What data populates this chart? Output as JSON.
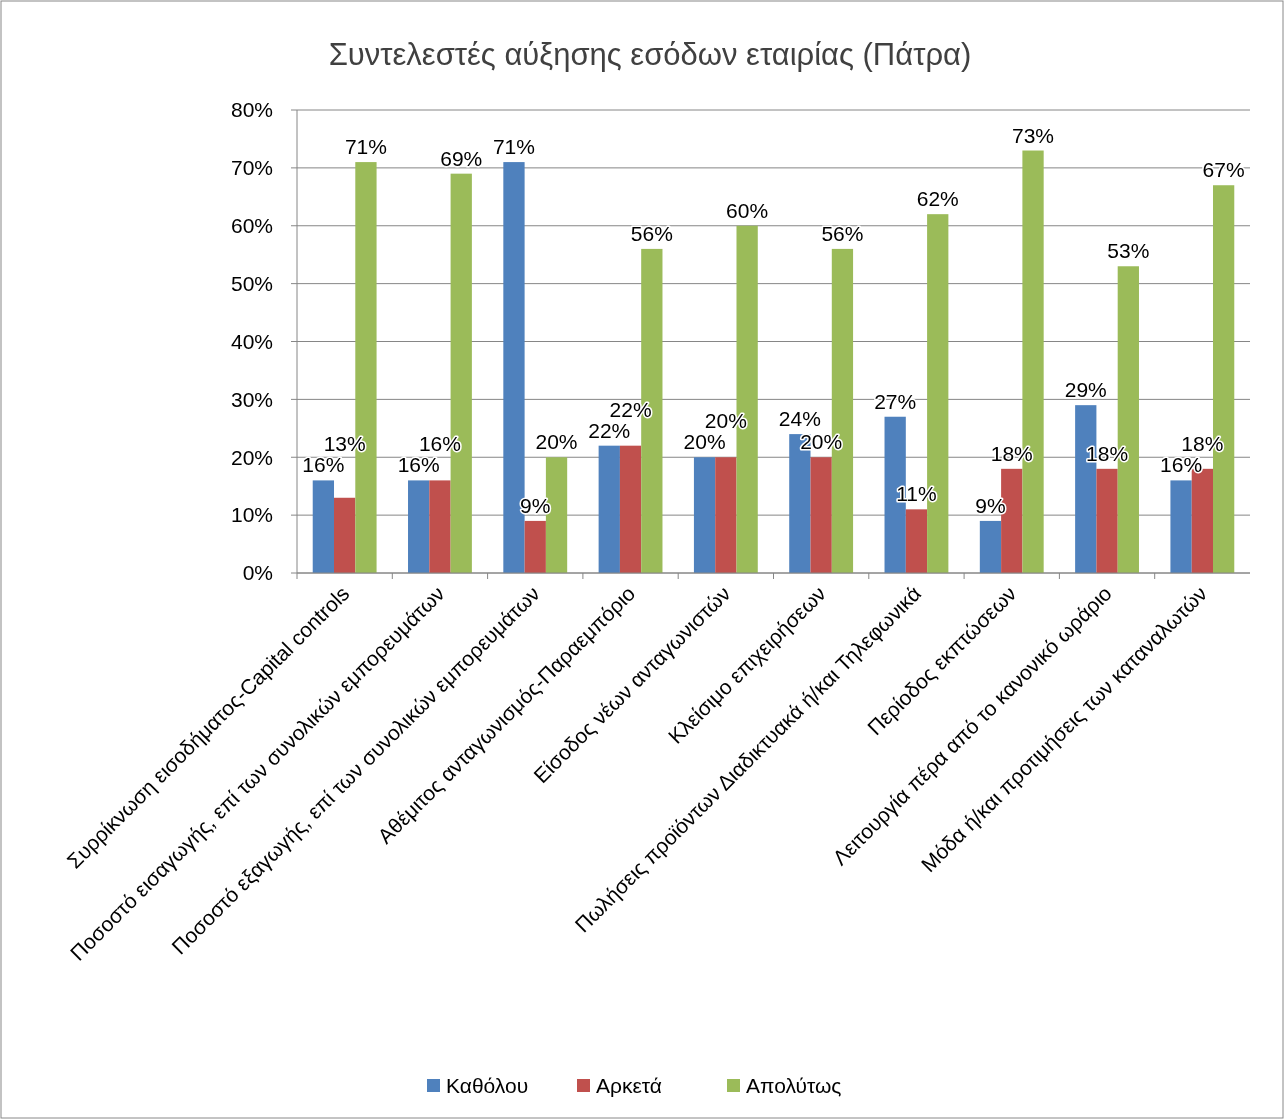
{
  "chart_data": {
    "type": "bar",
    "title": "Συντελεστές αύξησης εσόδων εταιρίας (Πάτρα)",
    "categories": [
      "Συρρίκνωση εισοδήματος-Capital controls",
      "Ποσοστό εισαγωγής, επί των συνολικών εμπορευμάτων",
      "Ποσοστό εξαγωγής, επί των συνολικών εμπορευμάτων",
      "Αθέμιτος ανταγωνισμός-Παραεμπόριο",
      "Είσοδος νέων ανταγωνιστών",
      "Κλείσιμο επιχειρήσεων",
      "Πωλήσεις  προϊόντων  Διαδικτυακά ή/και Τηλεφωνικά",
      "Περίοδος εκπτώσεων",
      "Λειτουργία πέρα από το κανονικό ωράριο",
      "Μόδα ή/και προτιμήσεις των καταναλωτών"
    ],
    "series": [
      {
        "name": "Καθόλου",
        "color": "#4f81bd",
        "values": [
          16,
          16,
          71,
          22,
          20,
          24,
          27,
          9,
          29,
          16
        ],
        "value_labels": [
          "16%",
          "16%",
          "71%",
          "22%",
          "20%",
          "24%",
          "27%",
          "9%",
          "29%",
          "16%"
        ]
      },
      {
        "name": "Αρκετά",
        "color": "#c0504d",
        "values": [
          13,
          16,
          9,
          22,
          20,
          20,
          11,
          18,
          18,
          18
        ],
        "value_labels": [
          "13%",
          "16%",
          "9%",
          "22%",
          "20%",
          "20%",
          "11%",
          "18%",
          "18%",
          "18%"
        ]
      },
      {
        "name": "Απολύτως",
        "color": "#9bbb59",
        "values": [
          71,
          69,
          20,
          56,
          60,
          56,
          62,
          73,
          53,
          67
        ],
        "value_labels": [
          "71%",
          "69%",
          "20%",
          "56%",
          "60%",
          "56%",
          "62%",
          "73%",
          "53%",
          "67%"
        ]
      }
    ],
    "ylim": [
      0,
      80
    ],
    "yticks": [
      {
        "value": 0,
        "label": "0%"
      },
      {
        "value": 10,
        "label": "10%"
      },
      {
        "value": 20,
        "label": "20%"
      },
      {
        "value": 30,
        "label": "30%"
      },
      {
        "value": 40,
        "label": "40%"
      },
      {
        "value": 50,
        "label": "50%"
      },
      {
        "value": 60,
        "label": "60%"
      },
      {
        "value": 70,
        "label": "70%"
      },
      {
        "value": 80,
        "label": "80%"
      }
    ],
    "grid": "y",
    "legend": "bottom"
  }
}
